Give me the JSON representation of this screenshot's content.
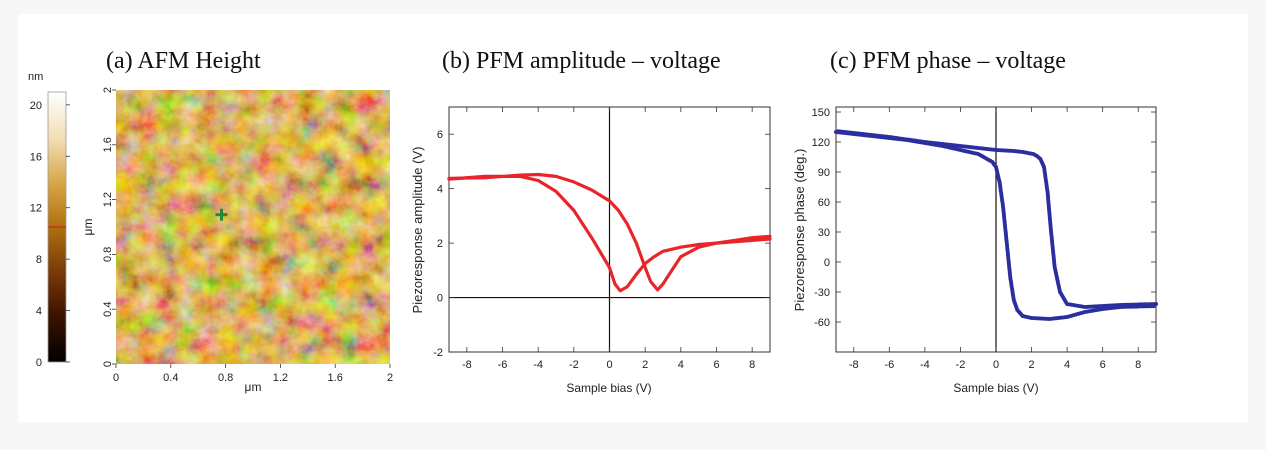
{
  "chart_data": [
    {
      "type": "heatmap",
      "title": "(a) AFM Height",
      "xlabel": "μm",
      "ylabel": "μm",
      "xlim": [
        0,
        2
      ],
      "ylim": [
        0,
        2
      ],
      "x_ticks": [
        "0",
        "0.4",
        "0.8",
        "1.2",
        "1.6",
        "2"
      ],
      "y_ticks": [
        "0",
        "0.4",
        "0.8",
        "1.2",
        "1.6",
        "2"
      ],
      "colorbar": {
        "label": "nm",
        "range": [
          0,
          21
        ],
        "ticks": [
          "0",
          "4",
          "8",
          "12",
          "16",
          "20"
        ],
        "marker_value": 10.5,
        "colors": [
          "#000000",
          "#3a1200",
          "#7a3a08",
          "#b0700c",
          "#d8a848",
          "#f2e0b8",
          "#ffffff"
        ]
      },
      "marker": {
        "x": 0.77,
        "y": 1.09,
        "color": "#1f8a3a"
      }
    },
    {
      "type": "line",
      "title": "(b) PFM amplitude – voltage",
      "xlabel": "Sample bias (V)",
      "ylabel": "Piezoresponse amplitude (V)",
      "xlim": [
        -9,
        9
      ],
      "ylim": [
        -2,
        7
      ],
      "x_ticks": [
        -8,
        -6,
        -4,
        -2,
        0,
        2,
        4,
        6,
        8
      ],
      "y_ticks": [
        -2,
        0,
        2,
        4,
        6
      ],
      "color": "#e8252a",
      "series": [
        {
          "x": [
            -9,
            -7,
            -5,
            -4,
            -3,
            -2,
            -1,
            0,
            0.3,
            0.6,
            1,
            1.5,
            2,
            2.5,
            3,
            4,
            5,
            6,
            7,
            8,
            9
          ],
          "values": [
            4.35,
            4.45,
            4.45,
            4.3,
            3.9,
            3.2,
            2.2,
            1.1,
            0.5,
            0.25,
            0.4,
            0.85,
            1.25,
            1.5,
            1.7,
            1.85,
            1.95,
            2.0,
            2.05,
            2.1,
            2.15
          ]
        },
        {
          "x": [
            9,
            8,
            7,
            6,
            5,
            4,
            3.5,
            3,
            2.7,
            2.3,
            2,
            1.5,
            1,
            0.5,
            0,
            -1,
            -2,
            -3,
            -4,
            -5,
            -7,
            -9
          ],
          "values": [
            2.25,
            2.2,
            2.1,
            2.0,
            1.85,
            1.5,
            1.0,
            0.5,
            0.28,
            0.6,
            1.1,
            2.0,
            2.7,
            3.2,
            3.55,
            3.95,
            4.25,
            4.45,
            4.52,
            4.5,
            4.4,
            4.38
          ]
        }
      ]
    },
    {
      "type": "scatter",
      "title": "(c) PFM phase – voltage",
      "xlabel": "Sample bias (V)",
      "ylabel": "Piezoresponse phase (deg.)",
      "xlim": [
        -9,
        9
      ],
      "ylim": [
        -90,
        155
      ],
      "x_ticks": [
        -8,
        -6,
        -4,
        -2,
        0,
        2,
        4,
        6,
        8
      ],
      "y_ticks": [
        -60,
        -30,
        0,
        30,
        60,
        90,
        120,
        150
      ],
      "color": "#2a2e9e",
      "series": [
        {
          "x": [
            -9,
            -7,
            -5,
            -3,
            -1,
            -0.2,
            0,
            0.2,
            0.4,
            0.6,
            0.8,
            1.0,
            1.2,
            1.5,
            2,
            3,
            4,
            5,
            6,
            7,
            9
          ],
          "values": [
            130,
            126,
            122,
            116,
            108,
            100,
            95,
            80,
            55,
            20,
            -15,
            -38,
            -48,
            -54,
            -56,
            -57,
            -55,
            -50,
            -47,
            -45,
            -44
          ]
        },
        {
          "x": [
            9,
            7,
            5,
            4,
            3.6,
            3.3,
            3.1,
            2.9,
            2.7,
            2.5,
            2.3,
            2.1,
            1.5,
            1,
            0,
            -2,
            -4,
            -6,
            -9
          ],
          "values": [
            -42,
            -43,
            -45,
            -42,
            -30,
            -5,
            30,
            70,
            95,
            103,
            106,
            108,
            110,
            111,
            112,
            116,
            120,
            125,
            131
          ]
        }
      ]
    }
  ]
}
